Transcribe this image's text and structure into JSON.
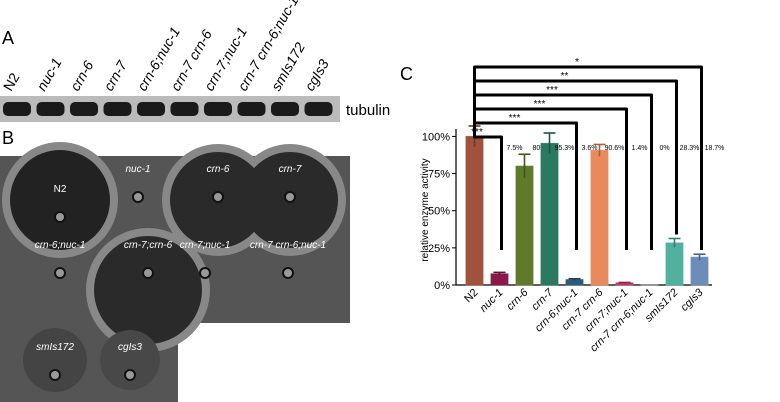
{
  "panel_a": {
    "label": "A",
    "lanes": [
      "N2",
      "nuc-1",
      "crn-6",
      "crn-7",
      "crn-6;nuc-1",
      "crn-7 crn-6",
      "crn-7;nuc-1",
      "crn-7 crn-6;nuc-1",
      "smIs172",
      "cgIs3"
    ],
    "blot_label": "tubulin"
  },
  "panel_b": {
    "label": "B",
    "spots": [
      "N2",
      "nuc-1",
      "crn-6",
      "crn-7",
      "crn-6;nuc-1",
      "crn-7;crn-6",
      "crn-7;nuc-1",
      "crn-7 crn-6;nuc-1",
      "smIs172",
      "cgIs3"
    ]
  },
  "chart_data": {
    "type": "bar",
    "panel_label": "C",
    "y_label": "relative enzyme activity",
    "categories": [
      "N2",
      "nuc-1",
      "crn-6",
      "crn-7",
      "crn-6;nuc-1",
      "crn-7 crn-6",
      "crn-7;nuc-1",
      "crn-7 crn-6;nuc-1",
      "smIs172",
      "cgIs3"
    ],
    "values": [
      100,
      7.5,
      80,
      95.3,
      3.6,
      90.6,
      1.4,
      0,
      28.3,
      18.7
    ],
    "value_labels": [
      null,
      "7.5%",
      "80%",
      "95.3%",
      "3.6%",
      "90.6%",
      "1.4%",
      "0%",
      "28.3%",
      "18.7%"
    ],
    "errors": [
      7,
      1,
      8,
      7,
      0.6,
      4,
      0.3,
      0,
      3,
      2
    ],
    "colors": [
      "#a0523d",
      "#8b1a4a",
      "#5f7a2a",
      "#2a7a62",
      "#2e5c78",
      "#e88a5c",
      "#c03a66",
      "#888888",
      "#52b09e",
      "#6c8cba"
    ],
    "ylim": [
      0,
      105
    ],
    "yticks": [
      {
        "value": 0,
        "label": "0%"
      },
      {
        "value": 25,
        "label": "25%"
      },
      {
        "value": 50,
        "label": "50%"
      },
      {
        "value": 75,
        "label": "75%"
      },
      {
        "value": 100,
        "label": "100%"
      }
    ],
    "significance": [
      {
        "to": "nuc-1",
        "label": "***"
      },
      {
        "to": "crn-6;nuc-1",
        "label": "***"
      },
      {
        "to": "crn-7;nuc-1",
        "label": "***"
      },
      {
        "to": "crn-7 crn-6;nuc-1",
        "label": "***"
      },
      {
        "to": "smIs172",
        "label": "**"
      },
      {
        "to": "cgIs3",
        "label": "*"
      }
    ]
  }
}
